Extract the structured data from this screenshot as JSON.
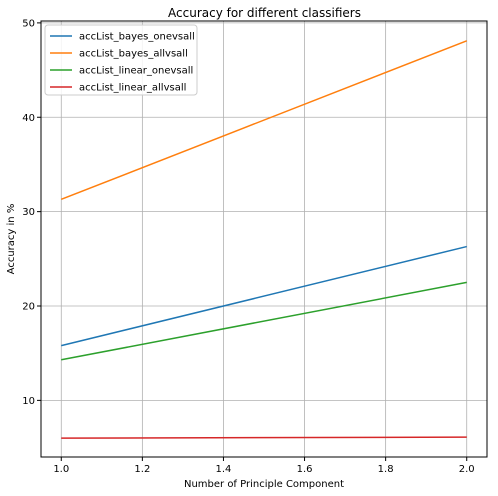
{
  "chart_data": {
    "type": "line",
    "title": "Accuracy for different classifiers",
    "xlabel": "Number of Principle Component",
    "ylabel": "Accuracy in %",
    "x": [
      1.0,
      2.0
    ],
    "xlim": [
      0.95,
      2.05
    ],
    "ylim": [
      4.0,
      50.2
    ],
    "xticks": [
      1.0,
      1.2,
      1.4,
      1.6,
      1.8,
      2.0
    ],
    "xtick_labels": [
      "1.0",
      "1.2",
      "1.4",
      "1.6",
      "1.8",
      "2.0"
    ],
    "yticks": [
      10,
      20,
      30,
      40,
      50
    ],
    "ytick_labels": [
      "10",
      "20",
      "30",
      "40",
      "50"
    ],
    "grid": true,
    "legend_position": "top-left",
    "series": [
      {
        "name": "accList_bayes_onevsall",
        "color": "#1f77b4",
        "values": [
          15.8,
          26.3
        ]
      },
      {
        "name": "accList_bayes_allvsall",
        "color": "#ff7f0e",
        "values": [
          31.3,
          48.1
        ]
      },
      {
        "name": "accList_linear_onevsall",
        "color": "#2ca02c",
        "values": [
          14.3,
          22.5
        ]
      },
      {
        "name": "accList_linear_allvsall",
        "color": "#d62728",
        "values": [
          6.0,
          6.1
        ]
      }
    ]
  }
}
